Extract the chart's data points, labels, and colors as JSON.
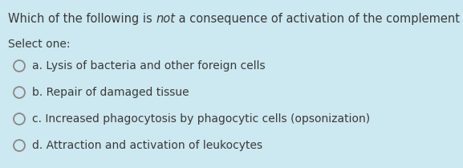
{
  "background_color": "#cce8f0",
  "title_part1": "Which of the following is ",
  "title_italic": "not",
  "title_part2": " a consequence of activation of the complement system?",
  "select_text": "Select one:",
  "options": [
    "a. Lysis of bacteria and other foreign cells",
    "b. Repair of damaged tissue",
    "c. Increased phagocytosis by phagocytic cells (opsonization)",
    "d. Attraction and activation of leukocytes"
  ],
  "text_color": "#3a3a3a",
  "circle_edge_color": "#888888",
  "font_size_title": 10.5,
  "font_size_select": 10.0,
  "font_size_options": 10.0,
  "figwidth": 5.77,
  "figheight": 2.09,
  "dpi": 100
}
